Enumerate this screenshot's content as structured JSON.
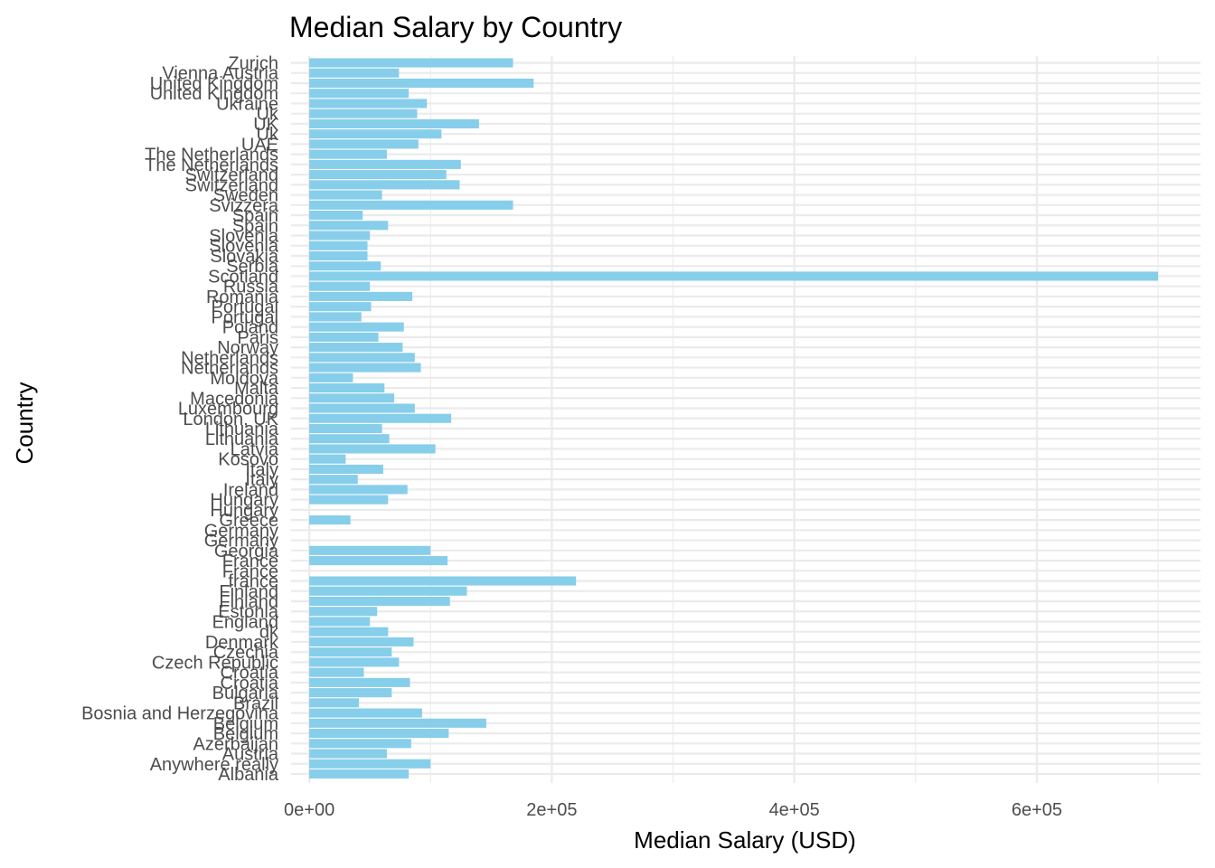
{
  "chart_data": {
    "type": "bar",
    "orientation": "horizontal",
    "title": "Median Salary by Country",
    "xlabel": "Median Salary (USD)",
    "ylabel": "Country",
    "xlim": [
      -15000,
      735000
    ],
    "xticks": [
      0,
      200000,
      400000,
      600000
    ],
    "xtick_labels": [
      "0e+00",
      "2e+05",
      "4e+05",
      "6e+05"
    ],
    "grid": true,
    "bar_color": "#87CEEB",
    "categories": [
      "Zurich",
      "Vienna Austria",
      "United Kingdom",
      "United Kingdom",
      "Ukraine",
      "Uk",
      "UK",
      "Uk",
      "UAE",
      "The Netherlands",
      "The Netherlands",
      "Switzerland",
      "Switzerland",
      "Sweden",
      "Svizzera",
      "Spain",
      "Spain",
      "Slovenia",
      "Slovenia",
      "Slovakia",
      "Serbia",
      "Scotland",
      "Russia",
      "Romania",
      "Portugal",
      "Portugal",
      "Poland",
      "Paris",
      "Norway",
      "Netherlands",
      "Netherlands",
      "Moldova",
      "Malta",
      "Macedonia",
      "Luxembourg",
      "London, UK",
      "Lithuania",
      "Lithuania",
      "Latvia",
      "Kosovo",
      "Italy",
      "Italy",
      "Ireland",
      "Hungary",
      "Hungary",
      "Greece",
      "Germany",
      "Germany",
      "Georgia",
      "France",
      "France",
      "france",
      "Finland",
      "Finland",
      "Estonia",
      "England",
      "dk",
      "Denmark",
      "Czechia",
      "Czech Republic",
      "Croatia",
      "Croatia",
      "Bulgaria",
      "Brazil",
      "Bosnia and Herzegovina",
      "Belgium",
      "Belgium",
      "Azerbaijan",
      "Austria",
      "Anywhere really",
      "Albania"
    ],
    "values": [
      168000,
      74000,
      185000,
      82000,
      97000,
      89000,
      140000,
      109000,
      90000,
      64000,
      125000,
      113000,
      124000,
      60000,
      168000,
      44000,
      65000,
      50000,
      48000,
      48000,
      59000,
      700000,
      50000,
      85000,
      51000,
      43000,
      78000,
      57000,
      77000,
      87000,
      92000,
      36000,
      62000,
      70000,
      87000,
      117000,
      60000,
      66000,
      104000,
      30000,
      61000,
      40000,
      81000,
      65000,
      0,
      34000,
      0,
      0,
      100000,
      114000,
      0,
      220000,
      130000,
      116000,
      56000,
      50000,
      65000,
      86000,
      68000,
      74000,
      45000,
      83000,
      68000,
      41000,
      93000,
      146000,
      115000,
      84000,
      64000,
      100000,
      82000
    ]
  }
}
